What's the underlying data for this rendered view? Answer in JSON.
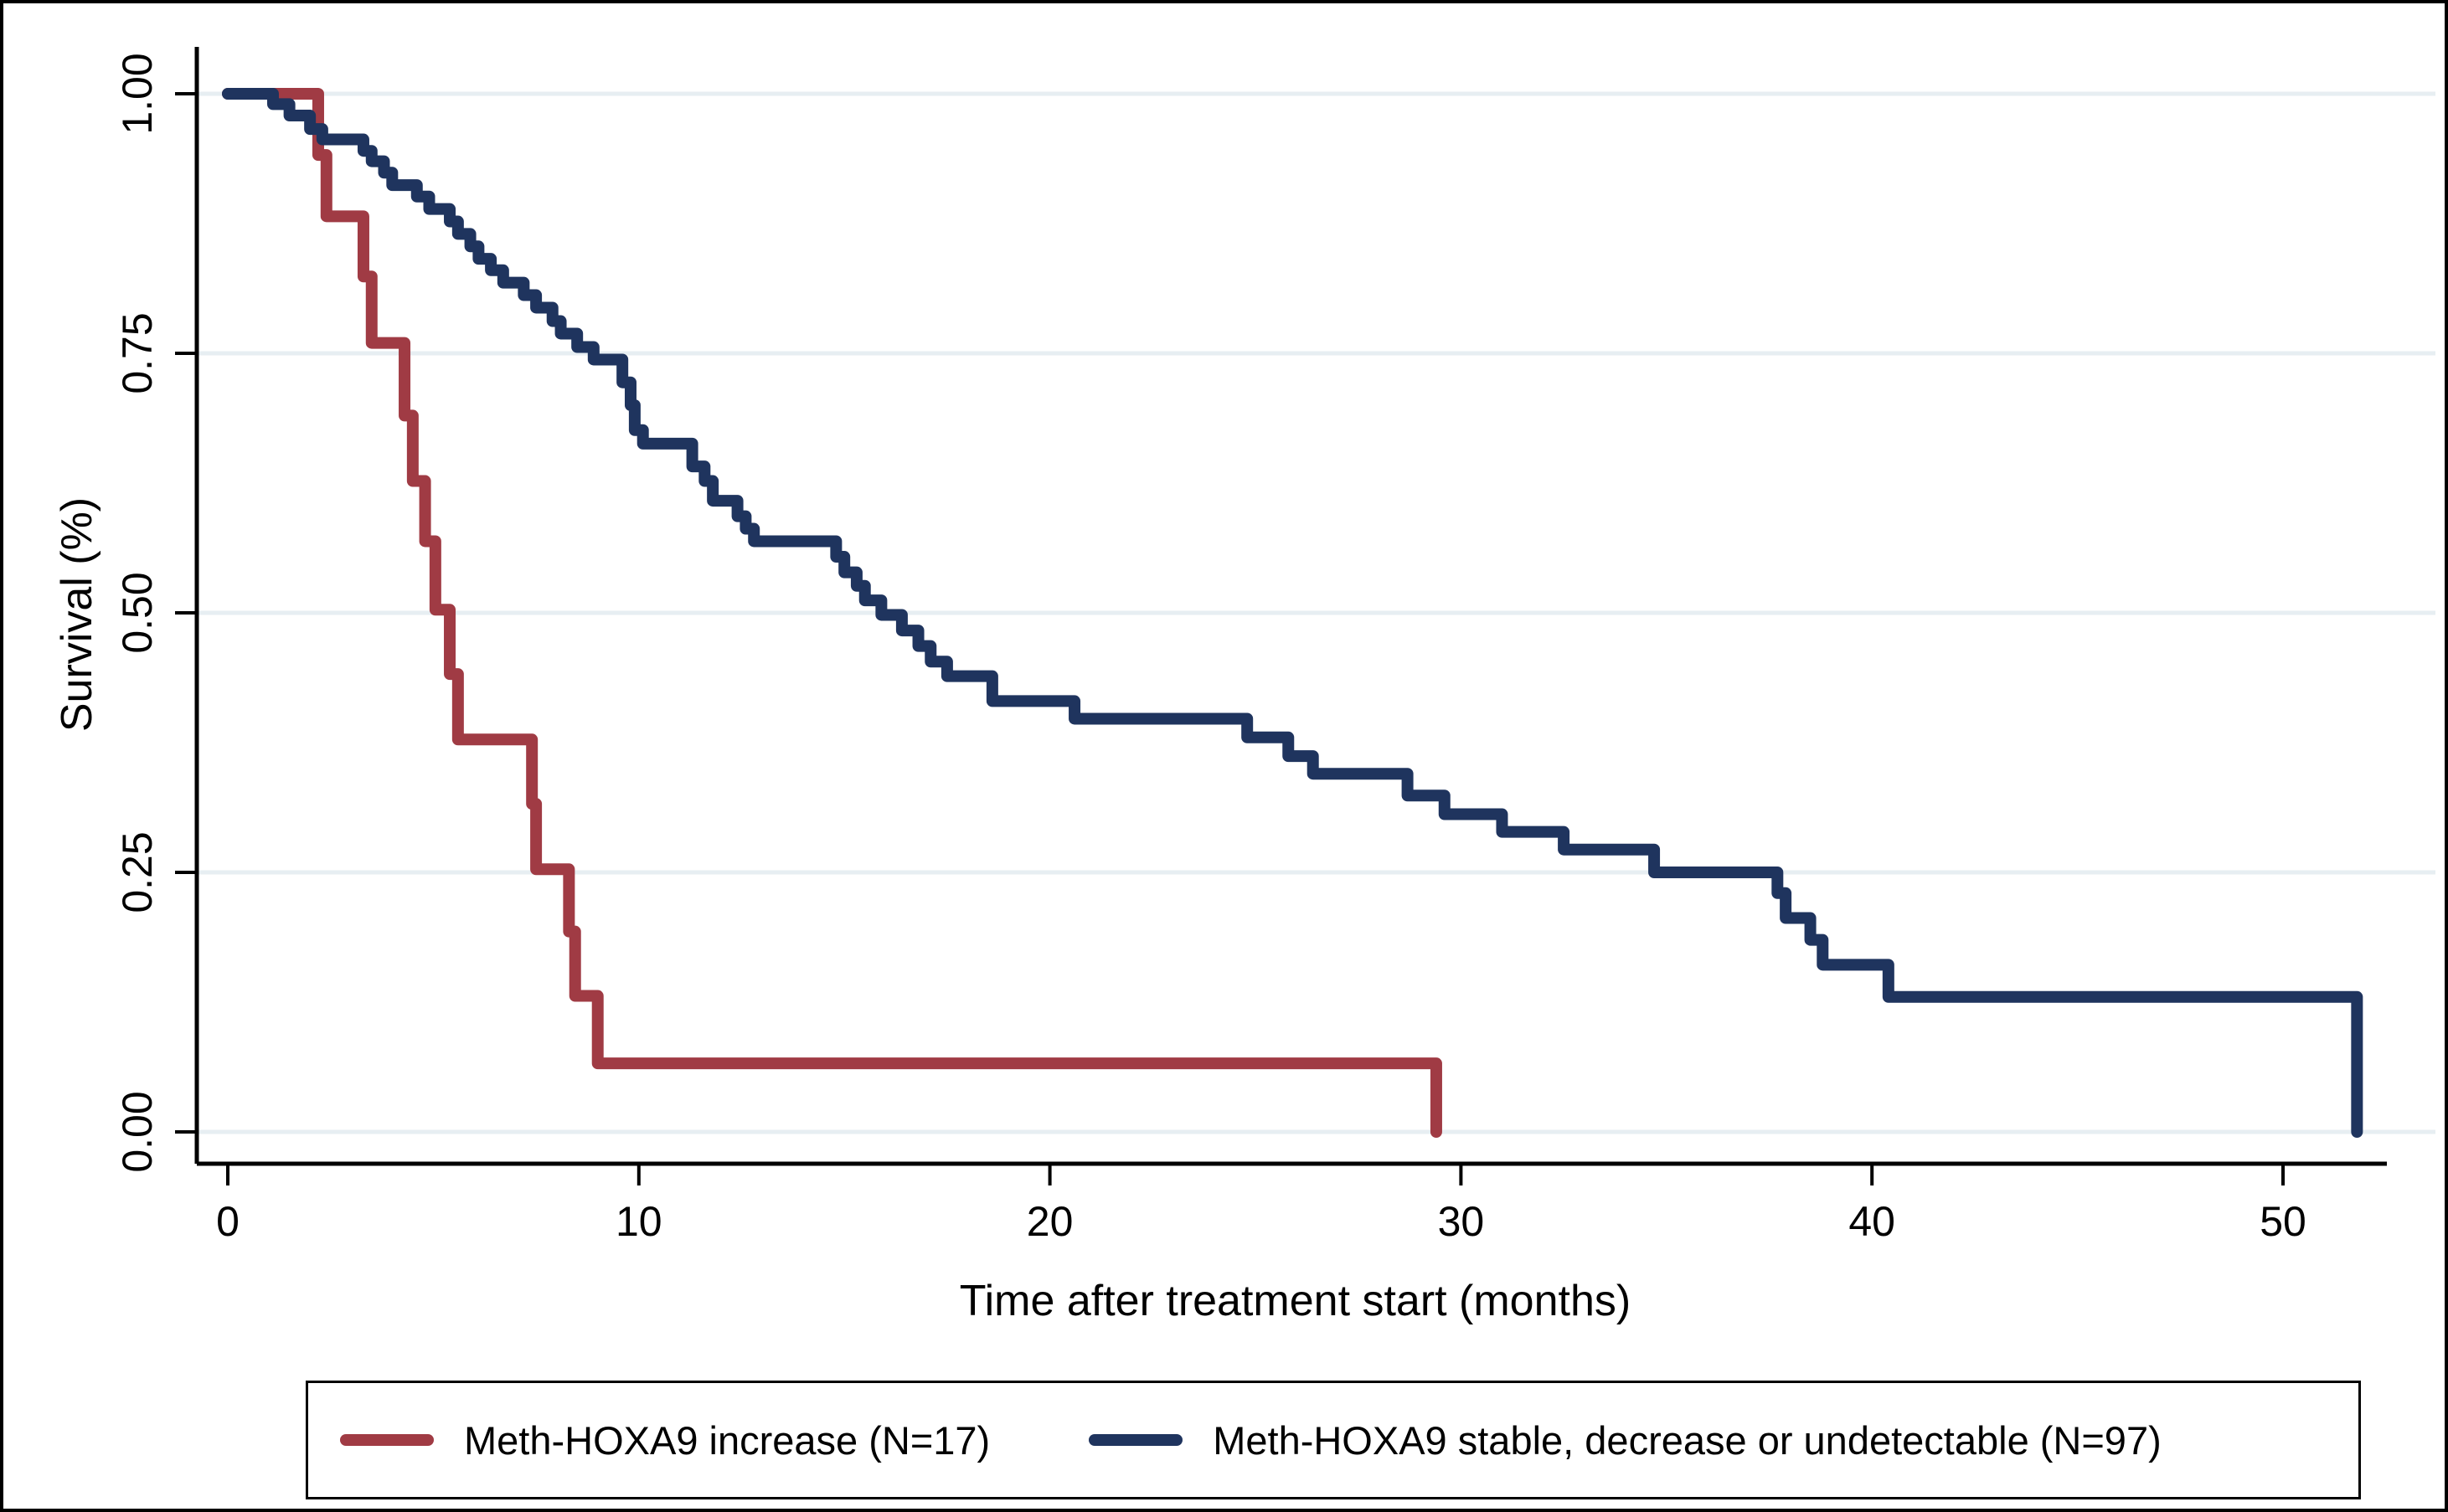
{
  "chart_data": {
    "type": "line",
    "subtype": "kaplan-meier-step",
    "title": "",
    "xlabel": "Time after treatment start (months)",
    "ylabel": "Survival (%)",
    "xlim": [
      0,
      53
    ],
    "ylim": [
      0.0,
      1.0
    ],
    "x_ticks": [
      0,
      10,
      20,
      30,
      40,
      50
    ],
    "y_ticks": [
      "0.00",
      "0.25",
      "0.50",
      "0.75",
      "1.00"
    ],
    "y_tick_values": [
      0.0,
      0.25,
      0.5,
      0.75,
      1.0
    ],
    "grid": "horizontal-major",
    "legend_position": "bottom",
    "series": [
      {
        "name": "Meth-HOXA9 increase (N=17)",
        "color": "#A03B44",
        "steps": [
          [
            0,
            1.0
          ],
          [
            2.2,
            0.941
          ],
          [
            2.4,
            0.882
          ],
          [
            3.3,
            0.824
          ],
          [
            3.5,
            0.76
          ],
          [
            4.3,
            0.69
          ],
          [
            4.5,
            0.627
          ],
          [
            4.8,
            0.569
          ],
          [
            5.05,
            0.503
          ],
          [
            5.4,
            0.441
          ],
          [
            5.6,
            0.378
          ],
          [
            7.4,
            0.316
          ],
          [
            7.5,
            0.253
          ],
          [
            8.3,
            0.193
          ],
          [
            8.45,
            0.131
          ],
          [
            9.0,
            0.066
          ],
          [
            29.4,
            0.0
          ]
        ]
      },
      {
        "name": "Meth-HOXA9 stable, decrease or undetectable (N=97)",
        "color": "#1F345E",
        "steps": [
          [
            0,
            1.0
          ],
          [
            1.1,
            0.99
          ],
          [
            1.5,
            0.979
          ],
          [
            2.0,
            0.966
          ],
          [
            2.3,
            0.956
          ],
          [
            3.3,
            0.945
          ],
          [
            3.5,
            0.935
          ],
          [
            3.8,
            0.924
          ],
          [
            4.0,
            0.912
          ],
          [
            4.6,
            0.901
          ],
          [
            4.9,
            0.889
          ],
          [
            5.4,
            0.877
          ],
          [
            5.6,
            0.865
          ],
          [
            5.9,
            0.853
          ],
          [
            6.1,
            0.841
          ],
          [
            6.4,
            0.83
          ],
          [
            6.7,
            0.818
          ],
          [
            7.2,
            0.806
          ],
          [
            7.5,
            0.794
          ],
          [
            7.9,
            0.781
          ],
          [
            8.1,
            0.769
          ],
          [
            8.5,
            0.756
          ],
          [
            8.9,
            0.744
          ],
          [
            9.6,
            0.722
          ],
          [
            9.8,
            0.7
          ],
          [
            9.9,
            0.676
          ],
          [
            10.1,
            0.663
          ],
          [
            11.3,
            0.641
          ],
          [
            11.6,
            0.627
          ],
          [
            11.8,
            0.608
          ],
          [
            12.4,
            0.593
          ],
          [
            12.6,
            0.581
          ],
          [
            12.8,
            0.569
          ],
          [
            14.8,
            0.554
          ],
          [
            15.0,
            0.539
          ],
          [
            15.3,
            0.526
          ],
          [
            15.5,
            0.512
          ],
          [
            15.9,
            0.498
          ],
          [
            16.4,
            0.483
          ],
          [
            16.8,
            0.468
          ],
          [
            17.1,
            0.453
          ],
          [
            17.5,
            0.439
          ],
          [
            18.6,
            0.415
          ],
          [
            20.6,
            0.398
          ],
          [
            24.8,
            0.38
          ],
          [
            25.8,
            0.362
          ],
          [
            26.4,
            0.345
          ],
          [
            28.7,
            0.324
          ],
          [
            29.6,
            0.306
          ],
          [
            31.0,
            0.289
          ],
          [
            32.5,
            0.272
          ],
          [
            34.7,
            0.25
          ],
          [
            37.7,
            0.23
          ],
          [
            37.9,
            0.206
          ],
          [
            38.5,
            0.185
          ],
          [
            38.8,
            0.161
          ],
          [
            40.4,
            0.13
          ],
          [
            51.8,
            0.0
          ]
        ]
      }
    ],
    "style": {
      "grid_color": "#E7EEF2",
      "axis_color": "#000000",
      "background": "#FFFFFF",
      "line_width": 14
    }
  },
  "legend": {
    "items": [
      {
        "label": "Meth-HOXA9 increase (N=17)"
      },
      {
        "label": "Meth-HOXA9 stable, decrease or undetectable (N=97)"
      }
    ]
  },
  "axes": {
    "x_title": "Time after treatment start (months)",
    "y_title": "Survival (%)"
  }
}
